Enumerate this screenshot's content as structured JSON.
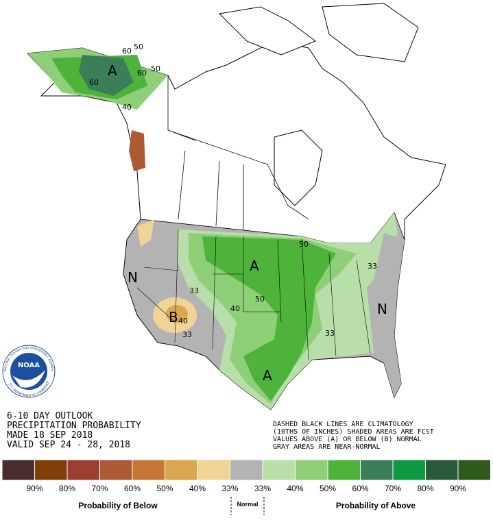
{
  "header": {
    "lines": [
      "6-10 DAY OUTLOOK",
      "PRECIPITATION PROBABILITY",
      "MADE  18 SEP 2018",
      "VALID  SEP 24 - 28, 2018"
    ]
  },
  "notes": [
    "DASHED BLACK LINES ARE CLIMATOLOGY",
    "(10THS OF INCHES) SHADED AREAS ARE FCST",
    "VALUES ABOVE (A) OR BELOW (B) NORMAL",
    "GRAY AREAS ARE NEAR-NORMAL"
  ],
  "logo": {
    "name": "NOAA",
    "ring_top": "NATIONAL OCEANIC AND ATMOSPHERIC ADMINISTRATION",
    "ring_bottom": "U.S. DEPARTMENT OF COMMERCE"
  },
  "map_labels": [
    "A",
    "60",
    "50",
    "60",
    "50",
    "60",
    "40",
    "N",
    "B",
    "33",
    "40",
    "33",
    "A",
    "50",
    "40",
    "A",
    "50",
    "33",
    "N",
    "33"
  ],
  "legend": {
    "colors": [
      "#4a2e2d",
      "#7f3f06",
      "#9b4030",
      "#ad5a34",
      "#c67735",
      "#daa74e",
      "#f0d496",
      "#b3b3b3",
      "#b8dfa9",
      "#8ecf78",
      "#4db33a",
      "#3b7f58",
      "#0f9940",
      "#2a5a3c",
      "#2f5a1c"
    ],
    "labels": [
      "90%",
      "80%",
      "70%",
      "60%",
      "50%",
      "40%",
      "33%",
      "33%",
      "40%",
      "50%",
      "60%",
      "70%",
      "80%",
      "90%"
    ],
    "below": "Probability of Below",
    "normal": "Normal",
    "above": "Probability of Above"
  }
}
